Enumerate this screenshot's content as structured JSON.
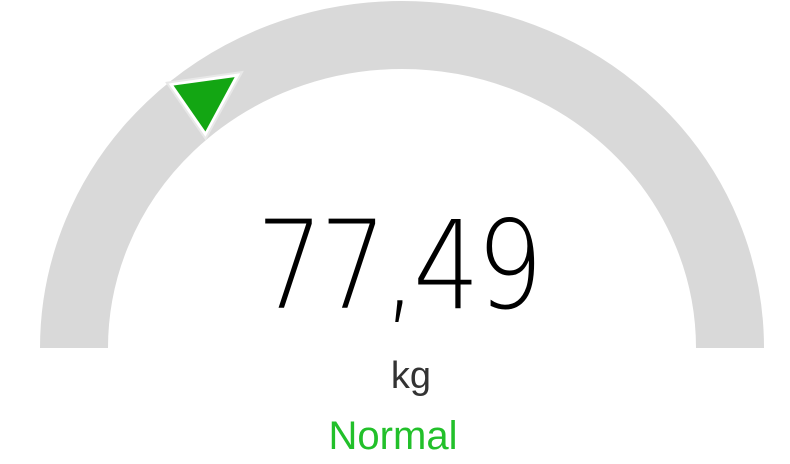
{
  "gauge": {
    "value_text": "77,49",
    "unit": "kg",
    "status": "Normal",
    "status_color": "#22c02a",
    "track_color": "#d9d9d9",
    "marker_color": "#13a613",
    "marker_icon": "triangle-pointer-icon",
    "progress": 0.3
  }
}
